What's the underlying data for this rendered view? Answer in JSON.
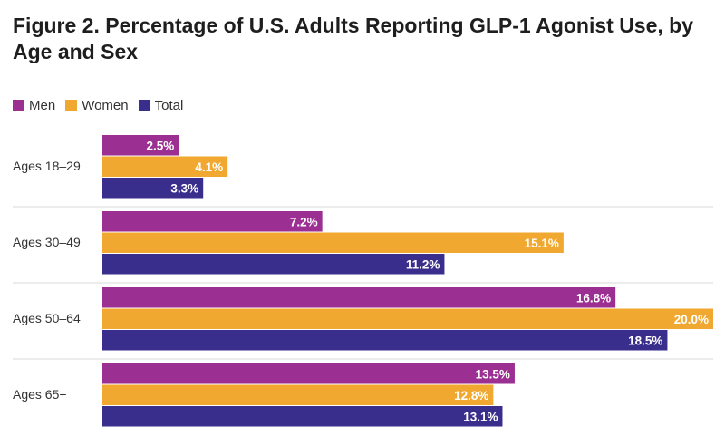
{
  "title_prefix": "Figure 2.",
  "title_rest": " Percentage of U.S. Adults Reporting GLP-1 Agonist Use, by Age and Sex",
  "colors": {
    "men": "#9b2f92",
    "women": "#f0a830",
    "total": "#3a2e8c",
    "divider": "#d9d9d9"
  },
  "legend": [
    {
      "name": "Men",
      "color": "#9b2f92"
    },
    {
      "name": "Women",
      "color": "#f0a830"
    },
    {
      "name": "Total",
      "color": "#3a2e8c"
    }
  ],
  "chart_data": {
    "type": "bar",
    "orientation": "horizontal",
    "categories": [
      "Ages 18–29",
      "Ages 30–49",
      "Ages 50–64",
      "Ages 65+"
    ],
    "series": [
      {
        "name": "Men",
        "values": [
          2.5,
          7.2,
          16.8,
          13.5
        ],
        "labels": [
          "2.5%",
          "7.2%",
          "16.8%",
          "13.5%"
        ]
      },
      {
        "name": "Women",
        "values": [
          4.1,
          15.1,
          20.0,
          12.8
        ],
        "labels": [
          "4.1%",
          "15.1%",
          "20.0%",
          "12.8%"
        ]
      },
      {
        "name": "Total",
        "values": [
          3.3,
          11.2,
          18.5,
          13.1
        ],
        "labels": [
          "3.3%",
          "11.2%",
          "18.5%",
          "13.1%"
        ]
      }
    ],
    "xlim": [
      0,
      20
    ],
    "grid": false,
    "legend_position": "top-left"
  }
}
